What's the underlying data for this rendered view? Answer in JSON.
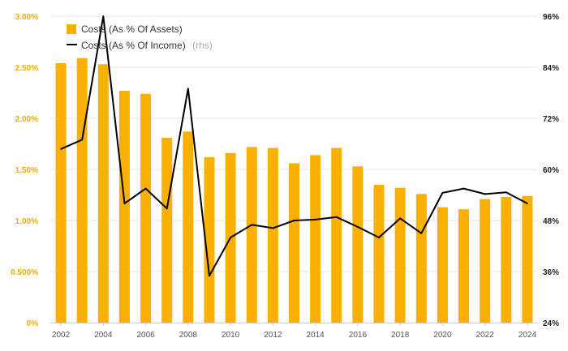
{
  "chart_data": {
    "type": "bar+line",
    "colors": {
      "bars": "#f9b000",
      "line": "#000000",
      "left_axis": "#f5a800",
      "right_axis": "#222222",
      "grid": "#e6e6e6"
    },
    "categories": [
      2002,
      2003,
      2004,
      2005,
      2006,
      2007,
      2008,
      2009,
      2010,
      2011,
      2012,
      2013,
      2014,
      2015,
      2016,
      2017,
      2018,
      2019,
      2020,
      2021,
      2022,
      2023,
      2024
    ],
    "x_tick_labels": [
      "2002",
      "2004",
      "2006",
      "2008",
      "2010",
      "2012",
      "2014",
      "2016",
      "2018",
      "2020",
      "2022",
      "2024"
    ],
    "series": [
      {
        "name": "Costs (As % Of Assets)",
        "type": "bar",
        "axis": "left",
        "values": [
          2.54,
          2.59,
          2.53,
          2.27,
          2.24,
          1.81,
          1.87,
          1.62,
          1.66,
          1.72,
          1.71,
          1.56,
          1.64,
          1.71,
          1.53,
          1.35,
          1.32,
          1.26,
          1.13,
          1.11,
          1.21,
          1.23,
          1.24
        ]
      },
      {
        "name": "Costs (As % Of Income)",
        "name_note": "(rhs)",
        "type": "line",
        "axis": "right",
        "values": [
          64.8,
          67.0,
          96.0,
          52.0,
          55.5,
          50.8,
          79.0,
          35.0,
          44.0,
          47.0,
          46.2,
          48.0,
          48.2,
          48.8,
          46.5,
          44.0,
          48.5,
          45.0,
          54.5,
          55.5,
          54.2,
          54.6,
          52.0
        ]
      }
    ],
    "left_axis": {
      "ylim": [
        0,
        3.0
      ],
      "ticks": [
        0,
        0.5,
        1.0,
        1.5,
        2.0,
        2.5,
        3.0
      ],
      "tick_labels": [
        "0%",
        "0.500%",
        "1.00%",
        "1.50%",
        "2.00%",
        "2.50%",
        "3.00%"
      ]
    },
    "right_axis": {
      "ylim": [
        24,
        96
      ],
      "ticks": [
        24,
        36,
        48,
        60,
        72,
        84,
        96
      ],
      "tick_labels": [
        "24%",
        "36%",
        "48%",
        "60%",
        "72%",
        "84%",
        "96%"
      ]
    },
    "legend": {
      "position": "top-left"
    }
  }
}
